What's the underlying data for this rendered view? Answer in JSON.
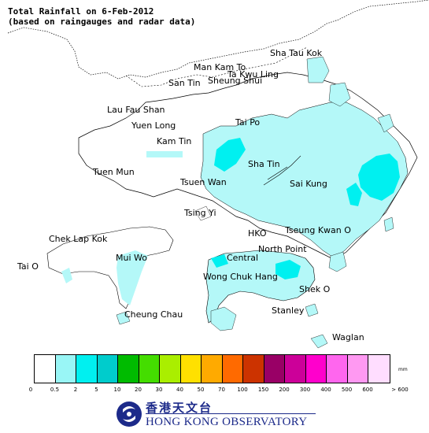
{
  "title": {
    "line1": "Total Rainfall on 6-Feb-2012",
    "line2": "(based on raingauges and radar data)"
  },
  "places": [
    {
      "id": "sha-tau-kok",
      "label": "Sha Tau Kok"
    },
    {
      "id": "man-kam-to",
      "label": "Man Kam To"
    },
    {
      "id": "ta-kwu-ling",
      "label": "Ta Kwu Ling"
    },
    {
      "id": "san-tin",
      "label": "San Tin"
    },
    {
      "id": "sheung-shui",
      "label": "Sheung Shui"
    },
    {
      "id": "lau-fau-shan",
      "label": "Lau Fau Shan"
    },
    {
      "id": "yuen-long",
      "label": "Yuen Long"
    },
    {
      "id": "tai-po",
      "label": "Tai Po"
    },
    {
      "id": "kam-tin",
      "label": "Kam Tin"
    },
    {
      "id": "tuen-mun",
      "label": "Tuen Mun"
    },
    {
      "id": "sha-tin",
      "label": "Sha Tin"
    },
    {
      "id": "tsuen-wan",
      "label": "Tsuen Wan"
    },
    {
      "id": "sai-kung",
      "label": "Sai Kung"
    },
    {
      "id": "tsing-yi",
      "label": "Tsing Yi"
    },
    {
      "id": "chek-lap-kok",
      "label": "Chek Lap Kok"
    },
    {
      "id": "hko",
      "label": "HKO"
    },
    {
      "id": "tseung-kwan-o",
      "label": "Tseung Kwan O"
    },
    {
      "id": "north-point",
      "label": "North Point"
    },
    {
      "id": "mui-wo",
      "label": "Mui Wo"
    },
    {
      "id": "central",
      "label": "Central"
    },
    {
      "id": "tai-o",
      "label": "Tai O"
    },
    {
      "id": "wong-chuk-hang",
      "label": "Wong Chuk Hang"
    },
    {
      "id": "shek-o",
      "label": "Shek O"
    },
    {
      "id": "stanley",
      "label": "Stanley"
    },
    {
      "id": "cheung-chau",
      "label": "Cheung Chau"
    },
    {
      "id": "waglan",
      "label": "Waglan"
    }
  ],
  "legend": {
    "unit": "mm",
    "colors": [
      "#ffffff",
      "#99f6f6",
      "#00f0f0",
      "#00cccc",
      "#00bb00",
      "#44dd00",
      "#aaee00",
      "#ffe000",
      "#ffaa00",
      "#ff6a00",
      "#cc3300",
      "#990066",
      "#cc0099",
      "#ff00cc",
      "#ff66ee",
      "#ff99f2",
      "#ffddff"
    ],
    "ticks": [
      "0",
      "0.5",
      "2",
      "5",
      "10",
      "20",
      "30",
      "40",
      "50",
      "70",
      "100",
      "150",
      "200",
      "300",
      "400",
      "500",
      "600",
      "> 600"
    ]
  },
  "rainfall_colors": {
    "land": "#b4f8f8",
    "heavier": "#00f0f0"
  },
  "logo": {
    "chinese": "香港天文台",
    "english": "HONG KONG OBSERVATORY",
    "color": "#1c2a8a"
  }
}
